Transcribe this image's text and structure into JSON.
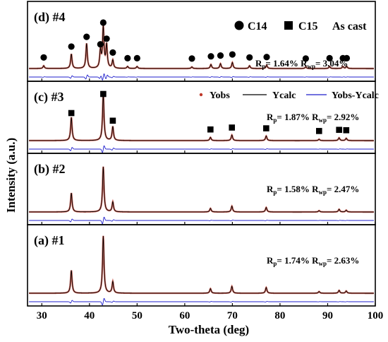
{
  "figure": {
    "xlabel": "Two-theta (deg)",
    "ylabel": "Intensity (a.u.)",
    "x_ticks": [
      30,
      40,
      50,
      60,
      70,
      80,
      90,
      100
    ],
    "xlim": [
      27,
      100
    ]
  },
  "chart_data": {
    "type": "line",
    "xlabel": "Two-theta (deg)",
    "ylabel": "Intensity (a.u.)",
    "xlim": [
      27,
      100
    ],
    "x_ticks": [
      30,
      40,
      50,
      60,
      70,
      80,
      90,
      100
    ],
    "series_legend": [
      {
        "name": "Yobs",
        "color": "#c0392b",
        "marker": "dot"
      },
      {
        "name": "Ycalc",
        "color": "#000000",
        "marker": "line"
      },
      {
        "name": "Yobs-Ycalc",
        "color": "#1f1fcc",
        "marker": "line"
      }
    ],
    "phase_legend": [
      {
        "name": "C14",
        "symbol": "circle"
      },
      {
        "name": "C15",
        "symbol": "square"
      }
    ],
    "condition": "As cast",
    "panels": [
      {
        "label": "(d) #4",
        "rp_text": "1.64%",
        "rwp_text": "3.04%",
        "phase_symbol": "circle",
        "peaks": [
          {
            "x": 30.4,
            "h": 0.07
          },
          {
            "x": 36.2,
            "h": 0.36
          },
          {
            "x": 39.4,
            "h": 0.62
          },
          {
            "x": 42.3,
            "h": 0.42
          },
          {
            "x": 42.9,
            "h": 1.0
          },
          {
            "x": 43.6,
            "h": 0.57
          },
          {
            "x": 44.9,
            "h": 0.2
          },
          {
            "x": 48.0,
            "h": 0.05
          },
          {
            "x": 50.0,
            "h": 0.05
          },
          {
            "x": 61.5,
            "h": 0.04
          },
          {
            "x": 65.5,
            "h": 0.1
          },
          {
            "x": 67.5,
            "h": 0.12
          },
          {
            "x": 70.0,
            "h": 0.15
          },
          {
            "x": 73.6,
            "h": 0.07
          },
          {
            "x": 77.2,
            "h": 0.08
          },
          {
            "x": 85.4,
            "h": 0.04
          },
          {
            "x": 90.4,
            "h": 0.05
          },
          {
            "x": 93.2,
            "h": 0.05
          },
          {
            "x": 94.0,
            "h": 0.05
          }
        ],
        "markers": [
          {
            "x": 30.4,
            "h": 0.07
          },
          {
            "x": 36.2,
            "h": 0.36
          },
          {
            "x": 39.4,
            "h": 0.62
          },
          {
            "x": 42.3,
            "h": 0.42
          },
          {
            "x": 42.9,
            "h": 1.0
          },
          {
            "x": 43.6,
            "h": 0.57
          },
          {
            "x": 44.9,
            "h": 0.2
          },
          {
            "x": 48.0,
            "h": 0.05
          },
          {
            "x": 50.0,
            "h": 0.05
          },
          {
            "x": 61.5,
            "h": 0.04
          },
          {
            "x": 65.5,
            "h": 0.1
          },
          {
            "x": 67.5,
            "h": 0.12
          },
          {
            "x": 70.0,
            "h": 0.15
          },
          {
            "x": 73.6,
            "h": 0.07
          },
          {
            "x": 77.2,
            "h": 0.08
          },
          {
            "x": 85.4,
            "h": 0.04
          },
          {
            "x": 90.4,
            "h": 0.05
          },
          {
            "x": 93.2,
            "h": 0.05
          },
          {
            "x": 94.0,
            "h": 0.05
          }
        ]
      },
      {
        "label": "(c) #3",
        "rp_text": "1.87%",
        "rwp_text": "2.92%",
        "phase_symbol": "square",
        "peaks": [
          {
            "x": 36.2,
            "h": 0.5
          },
          {
            "x": 42.9,
            "h": 1.0
          },
          {
            "x": 44.9,
            "h": 0.3
          },
          {
            "x": 65.4,
            "h": 0.07
          },
          {
            "x": 69.9,
            "h": 0.12
          },
          {
            "x": 77.1,
            "h": 0.1
          },
          {
            "x": 88.2,
            "h": 0.03
          },
          {
            "x": 92.4,
            "h": 0.06
          },
          {
            "x": 93.9,
            "h": 0.05
          }
        ],
        "markers": [
          {
            "x": 36.2,
            "h": 0.5
          },
          {
            "x": 42.9,
            "h": 1.0
          },
          {
            "x": 44.9,
            "h": 0.3
          },
          {
            "x": 65.4,
            "h": 0.07
          },
          {
            "x": 69.9,
            "h": 0.12
          },
          {
            "x": 77.1,
            "h": 0.1
          },
          {
            "x": 88.2,
            "h": 0.03
          },
          {
            "x": 92.4,
            "h": 0.06
          },
          {
            "x": 93.9,
            "h": 0.05
          }
        ]
      },
      {
        "label": "(b) #2",
        "rp_text": "1.58%",
        "rwp_text": "2.47%",
        "phase_symbol": "",
        "peaks": [
          {
            "x": 36.2,
            "h": 0.42
          },
          {
            "x": 42.9,
            "h": 1.0
          },
          {
            "x": 44.9,
            "h": 0.22
          },
          {
            "x": 65.4,
            "h": 0.08
          },
          {
            "x": 69.9,
            "h": 0.13
          },
          {
            "x": 77.1,
            "h": 0.1
          },
          {
            "x": 88.2,
            "h": 0.03
          },
          {
            "x": 92.4,
            "h": 0.06
          },
          {
            "x": 93.9,
            "h": 0.04
          }
        ],
        "markers": []
      },
      {
        "label": "(a) #1",
        "rp_text": "1.74%",
        "rwp_text": "2.63%",
        "phase_symbol": "",
        "peaks": [
          {
            "x": 36.2,
            "h": 0.4
          },
          {
            "x": 42.9,
            "h": 1.0
          },
          {
            "x": 44.9,
            "h": 0.2
          },
          {
            "x": 65.4,
            "h": 0.08
          },
          {
            "x": 69.9,
            "h": 0.12
          },
          {
            "x": 77.1,
            "h": 0.1
          },
          {
            "x": 88.2,
            "h": 0.03
          },
          {
            "x": 92.4,
            "h": 0.05
          },
          {
            "x": 93.9,
            "h": 0.04
          }
        ],
        "markers": []
      }
    ]
  }
}
